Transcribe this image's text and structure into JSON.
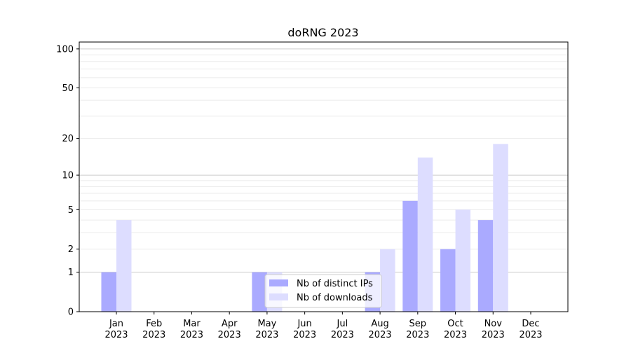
{
  "chart_data": {
    "type": "bar",
    "title": "doRNG 2023",
    "xlabel": "",
    "ylabel": "",
    "yscale": "log(1+y)",
    "ylim": [
      0,
      113
    ],
    "yticks": [
      0,
      1,
      2,
      5,
      10,
      20,
      50,
      100
    ],
    "ytick_labels": [
      "0",
      "1",
      "2",
      "5",
      "10",
      "20",
      "50",
      "100"
    ],
    "grid": "horizontal major and minor",
    "legend_position": "lower center",
    "categories": [
      "Jan\n2023",
      "Feb\n2023",
      "Mar\n2023",
      "Apr\n2023",
      "May\n2023",
      "Jun\n2023",
      "Jul\n2023",
      "Aug\n2023",
      "Sep\n2023",
      "Oct\n2023",
      "Nov\n2023",
      "Dec\n2023"
    ],
    "series": [
      {
        "name": "Nb of distinct IPs",
        "color": "#aaaaff",
        "values": [
          1,
          0,
          0,
          0,
          1,
          0,
          0,
          1,
          6,
          2,
          4,
          0
        ]
      },
      {
        "name": "Nb of downloads",
        "color": "#ddddff",
        "values": [
          4,
          0,
          0,
          0,
          1,
          0,
          0,
          2,
          14,
          5,
          18,
          0
        ]
      }
    ]
  }
}
